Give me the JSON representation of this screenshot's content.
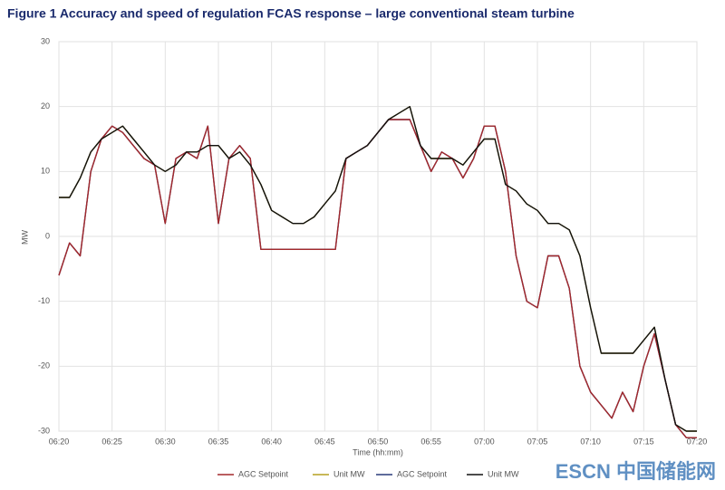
{
  "chart_data": {
    "type": "line",
    "title": "Figure 1  Accuracy and speed of regulation FCAS response – large conventional steam turbine",
    "x_label": "Time (hh:mm)",
    "y_label": "MW",
    "x": [
      "06:20",
      "06:21",
      "06:22",
      "06:23",
      "06:24",
      "06:25",
      "06:26",
      "06:27",
      "06:28",
      "06:29",
      "06:30",
      "06:31",
      "06:32",
      "06:33",
      "06:34",
      "06:35",
      "06:36",
      "06:37",
      "06:38",
      "06:39",
      "06:40",
      "06:41",
      "06:42",
      "06:43",
      "06:44",
      "06:45",
      "06:46",
      "06:47",
      "06:48",
      "06:49",
      "06:50",
      "06:51",
      "06:52",
      "06:53",
      "06:54",
      "06:55",
      "06:56",
      "06:57",
      "06:58",
      "06:59",
      "07:00",
      "07:01",
      "07:02",
      "07:03",
      "07:04",
      "07:05",
      "07:06",
      "07:07",
      "07:08",
      "07:09",
      "07:10",
      "07:11",
      "07:12",
      "07:13",
      "07:14",
      "07:15",
      "07:16",
      "07:17",
      "07:18",
      "07:19",
      "07:20"
    ],
    "series": [
      {
        "name": "Unit MW",
        "color": "#b5a020",
        "values": [
          6,
          6,
          9,
          13,
          15,
          16,
          17,
          15,
          13,
          11,
          10,
          11,
          13,
          13,
          14,
          14,
          12,
          13,
          11,
          8,
          4,
          3,
          2,
          2,
          3,
          5,
          7,
          12,
          13,
          14,
          16,
          18,
          19,
          20,
          14,
          12,
          12,
          12,
          11,
          13,
          15,
          15,
          8,
          7,
          5,
          4,
          2,
          2,
          1,
          -3,
          -11,
          -18,
          -18,
          -18,
          -18,
          -16,
          -14,
          -22,
          -29,
          -30,
          -30
        ]
      },
      {
        "name": "AGC Setpoint",
        "color": "#2a3a7a",
        "values": [
          -6,
          -1,
          -3,
          10,
          15,
          17,
          16,
          14,
          12,
          11,
          2,
          12,
          13,
          12,
          17,
          2,
          12,
          14,
          12,
          -2,
          -2,
          -2,
          -2,
          -2,
          -2,
          -2,
          -2,
          12,
          13,
          14,
          16,
          18,
          18,
          18,
          14,
          10,
          13,
          12,
          9,
          12,
          17,
          17,
          10,
          -3,
          -10,
          -11,
          -3,
          -3,
          -8,
          -20,
          -24,
          -26,
          -28,
          -24,
          -27,
          -20,
          -15,
          -22,
          -29,
          -31,
          -31
        ]
      },
      {
        "name": "AGC Setpoint",
        "color": "#a3282b",
        "values": [
          -6,
          -1,
          -3,
          10,
          15,
          17,
          16,
          14,
          12,
          11,
          2,
          12,
          13,
          12,
          17,
          2,
          12,
          14,
          12,
          -2,
          -2,
          -2,
          -2,
          -2,
          -2,
          -2,
          -2,
          12,
          13,
          14,
          16,
          18,
          18,
          18,
          14,
          10,
          13,
          12,
          9,
          12,
          17,
          17,
          10,
          -3,
          -10,
          -11,
          -3,
          -3,
          -8,
          -20,
          -24,
          -26,
          -28,
          -24,
          -27,
          -20,
          -15,
          -22,
          -29,
          -31,
          -31
        ]
      },
      {
        "name": "Unit MW",
        "color": "#111111",
        "values": [
          6,
          6,
          9,
          13,
          15,
          16,
          17,
          15,
          13,
          11,
          10,
          11,
          13,
          13,
          14,
          14,
          12,
          13,
          11,
          8,
          4,
          3,
          2,
          2,
          3,
          5,
          7,
          12,
          13,
          14,
          16,
          18,
          19,
          20,
          14,
          12,
          12,
          12,
          11,
          13,
          15,
          15,
          8,
          7,
          5,
          4,
          2,
          2,
          1,
          -3,
          -11,
          -18,
          -18,
          -18,
          -18,
          -16,
          -14,
          -22,
          -29,
          -30,
          -30
        ]
      }
    ],
    "legend_order": [
      2,
      0,
      1,
      3
    ],
    "xlim": [
      "06:20",
      "07:20"
    ],
    "xticks": [
      "06:20",
      "06:25",
      "06:30",
      "06:35",
      "06:40",
      "06:45",
      "06:50",
      "06:55",
      "07:00",
      "07:05",
      "07:10",
      "07:15",
      "07:20"
    ],
    "ylim": [
      -30,
      30
    ],
    "yticks": [
      -30,
      -20,
      -10,
      0,
      10,
      20,
      30
    ],
    "grid": true,
    "watermark": "ESCN 中国储能网"
  }
}
